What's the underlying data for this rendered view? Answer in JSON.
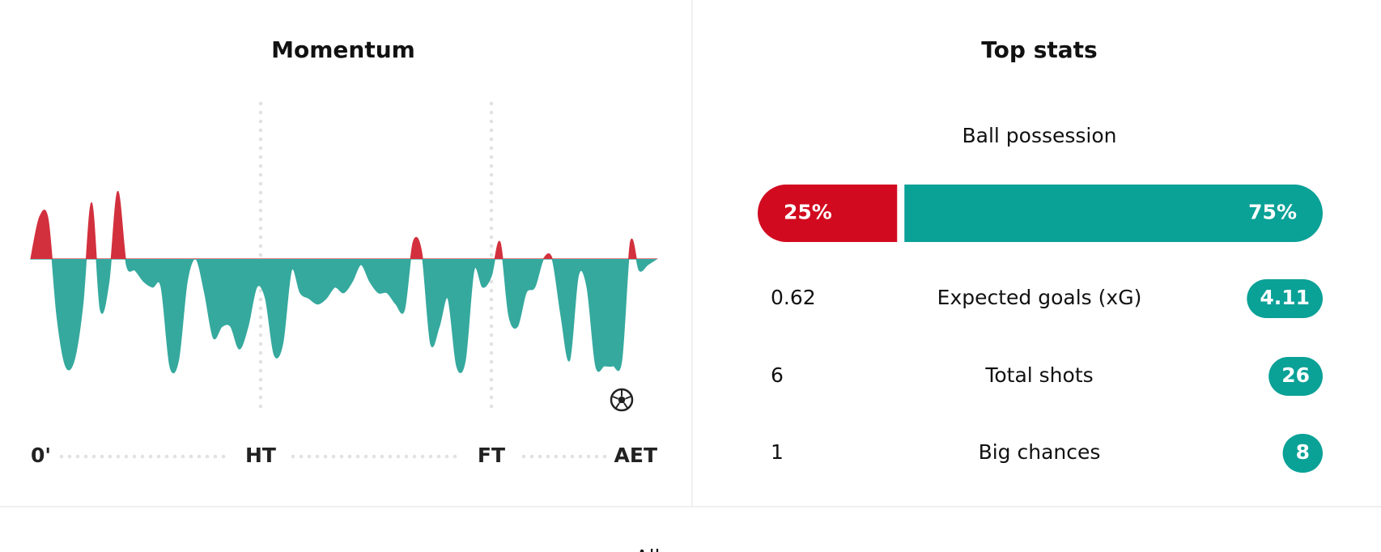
{
  "momentum": {
    "title": "Momentum",
    "axis_labels": [
      "0'",
      "HT",
      "FT",
      "AET"
    ],
    "values": [
      0,
      37,
      35,
      -50,
      -95,
      -90,
      -40,
      50,
      -45,
      -20,
      60,
      -5,
      -10,
      -20,
      -25,
      -25,
      -95,
      -90,
      -20,
      0,
      -30,
      -70,
      -60,
      -60,
      -80,
      -60,
      -25,
      -35,
      -85,
      -75,
      -10,
      -30,
      -35,
      -40,
      -35,
      -25,
      -30,
      -20,
      -5,
      -20,
      -30,
      -30,
      -40,
      -45,
      15,
      5,
      -75,
      -60,
      -35,
      -95,
      -90,
      -10,
      -25,
      -15,
      15,
      -50,
      -60,
      -30,
      -25,
      0,
      0,
      -50,
      -90,
      -15,
      -25,
      -95,
      -95,
      -95,
      -90,
      15,
      -10,
      -5,
      0
    ],
    "ylim": [
      -100,
      100
    ]
  },
  "top_stats": {
    "title": "Top stats",
    "possession": {
      "label": "Ball possession",
      "values": [
        25,
        75
      ],
      "value_labels": [
        "25%",
        "75%"
      ]
    },
    "rows": [
      {
        "label": "Expected goals (xG)",
        "home": "0.62",
        "away": "4.11"
      },
      {
        "label": "Total shots",
        "home": "6",
        "away": "26"
      },
      {
        "label": "Big chances",
        "home": "1",
        "away": "8"
      }
    ]
  },
  "footer": {
    "tab": "All"
  }
}
